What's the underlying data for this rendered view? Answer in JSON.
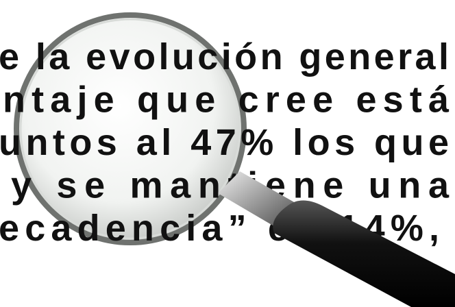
{
  "text": {
    "lines": [
      "e la evolución general",
      "ntaje que cree está",
      "untos al 47% los que",
      "y se mantiene una",
      "ecadencia” en 14%,"
    ]
  }
}
